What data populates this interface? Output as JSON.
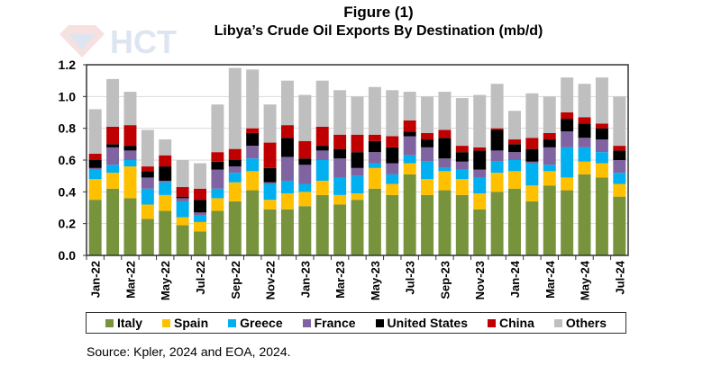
{
  "watermark": {
    "text": "HCT"
  },
  "chart_data": {
    "type": "bar",
    "stacked": true,
    "title": "Figure (1)",
    "subtitle": "Libya’s Crude Oil Exports By Destination (mb/d)",
    "xlabel": "",
    "ylabel": "",
    "ylim": [
      0,
      1.2
    ],
    "yticks": [
      "0.0",
      "0.2",
      "0.4",
      "0.6",
      "0.8",
      "1.0",
      "1.2"
    ],
    "grid": true,
    "legend_position": "bottom",
    "categories": [
      "Jan-22",
      "Feb-22",
      "Mar-22",
      "Apr-22",
      "May-22",
      "Jun-22",
      "Jul-22",
      "Aug-22",
      "Sep-22",
      "Oct-22",
      "Nov-22",
      "Dec-22",
      "Jan-23",
      "Feb-23",
      "Mar-23",
      "Apr-23",
      "May-23",
      "Jun-23",
      "Jul-23",
      "Aug-23",
      "Sep-23",
      "Oct-23",
      "Nov-23",
      "Dec-23",
      "Jan-24",
      "Feb-24",
      "Mar-24",
      "Apr-24",
      "May-24",
      "Jun-24",
      "Jul-24"
    ],
    "tick_labels_shown": [
      "Jan-22",
      "Mar-22",
      "May-22",
      "Jul-22",
      "Sep-22",
      "Nov-22",
      "Jan-23",
      "Mar-23",
      "May-23",
      "Jul-23",
      "Sep-23",
      "Nov-23",
      "Jan-24",
      "Mar-24",
      "May-24",
      "Jul-24"
    ],
    "series": [
      {
        "name": "Italy",
        "color": "#77933C",
        "values": [
          0.35,
          0.42,
          0.36,
          0.23,
          0.28,
          0.19,
          0.15,
          0.28,
          0.34,
          0.41,
          0.29,
          0.29,
          0.31,
          0.38,
          0.32,
          0.35,
          0.42,
          0.38,
          0.51,
          0.38,
          0.41,
          0.38,
          0.29,
          0.4,
          0.42,
          0.34,
          0.44,
          0.41,
          0.51,
          0.49,
          0.37
        ]
      },
      {
        "name": "Spain",
        "color": "#FFC000",
        "values": [
          0.13,
          0.1,
          0.2,
          0.09,
          0.1,
          0.05,
          0.06,
          0.08,
          0.12,
          0.12,
          0.06,
          0.1,
          0.09,
          0.09,
          0.06,
          0.04,
          0.13,
          0.07,
          0.07,
          0.1,
          0.12,
          0.1,
          0.1,
          0.12,
          0.11,
          0.1,
          0.09,
          0.08,
          0.08,
          0.09,
          0.08
        ]
      },
      {
        "name": "Greece",
        "color": "#00B0F0",
        "values": [
          0.06,
          0.05,
          0.04,
          0.1,
          0.08,
          0.1,
          0.04,
          0.06,
          0.06,
          0.08,
          0.1,
          0.08,
          0.05,
          0.13,
          0.11,
          0.11,
          0.03,
          0.06,
          0.05,
          0.11,
          0.02,
          0.06,
          0.1,
          0.07,
          0.07,
          0.14,
          0.04,
          0.19,
          0.09,
          0.07,
          0.07
        ]
      },
      {
        "name": "France",
        "color": "#8064A2",
        "values": [
          0.01,
          0.11,
          0.06,
          0.07,
          0.01,
          0.02,
          0.02,
          0.12,
          0.04,
          0.08,
          0.01,
          0.15,
          0.12,
          0.06,
          0.12,
          0.05,
          0.07,
          0.07,
          0.12,
          0.09,
          0.06,
          0.05,
          0.05,
          0.07,
          0.05,
          0.01,
          0.11,
          0.1,
          0.06,
          0.08,
          0.08
        ]
      },
      {
        "name": "United States",
        "color": "#000000",
        "values": [
          0.05,
          0.02,
          0.03,
          0.04,
          0.09,
          0.01,
          0.08,
          0.05,
          0.04,
          0.08,
          0.09,
          0.12,
          0.04,
          0.03,
          0.06,
          0.1,
          0.07,
          0.1,
          0.03,
          0.05,
          0.13,
          0.06,
          0.12,
          0.13,
          0.05,
          0.08,
          0.05,
          0.08,
          0.09,
          0.07,
          0.06
        ]
      },
      {
        "name": "China",
        "color": "#C00000",
        "values": [
          0.04,
          0.11,
          0.13,
          0.03,
          0.07,
          0.06,
          0.07,
          0.06,
          0.07,
          0.03,
          0.16,
          0.08,
          0.11,
          0.12,
          0.09,
          0.11,
          0.04,
          0.07,
          0.07,
          0.04,
          0.05,
          0.04,
          0.02,
          0.01,
          0.03,
          0.07,
          0.04,
          0.04,
          0.04,
          0.03,
          0.03
        ]
      },
      {
        "name": "Others",
        "color": "#BFBFBF",
        "values": [
          0.28,
          0.3,
          0.21,
          0.23,
          0.1,
          0.17,
          0.16,
          0.3,
          0.51,
          0.37,
          0.24,
          0.28,
          0.29,
          0.29,
          0.28,
          0.24,
          0.3,
          0.29,
          0.18,
          0.23,
          0.24,
          0.3,
          0.33,
          0.28,
          0.18,
          0.28,
          0.23,
          0.22,
          0.21,
          0.29,
          0.31
        ]
      }
    ],
    "source": "Source: Kpler, 2024 and EOA, 2024."
  }
}
